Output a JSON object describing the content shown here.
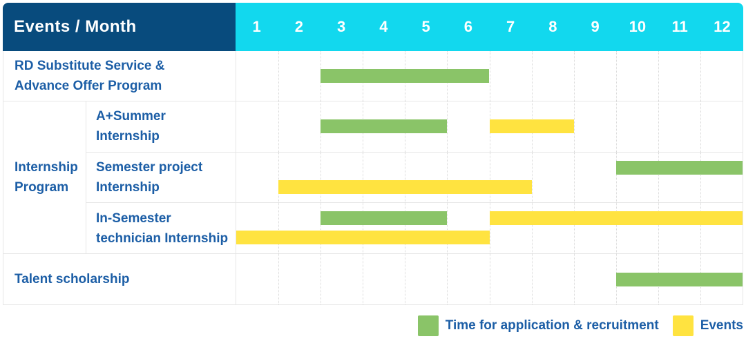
{
  "theme": {
    "header_navy": "#084b7d",
    "header_cyan": "#12d8ee",
    "recruitment_green": "#8ac468",
    "event_yellow": "#ffe340",
    "label_blue": "#1c5ea6",
    "grid_gray": "#e6e6e6"
  },
  "chart_data": {
    "type": "gantt",
    "title": "Events / Month",
    "x": {
      "label": "Month",
      "range": [
        1,
        12
      ],
      "ticks": [
        "1",
        "2",
        "3",
        "4",
        "5",
        "6",
        "7",
        "8",
        "9",
        "10",
        "11",
        "12"
      ]
    },
    "legend": [
      {
        "key": "recruitment",
        "label": "Time for application & recruitment",
        "color": "#8ac468"
      },
      {
        "key": "event",
        "label": "Events",
        "color": "#ffe340"
      }
    ],
    "rows": [
      {
        "label": "RD Substitute Service & Advance Offer Program",
        "label_lines": [
          "RD Substitute Service &",
          "Advance Offer Program"
        ],
        "bars": [
          {
            "series": "recruitment",
            "start_month": 3,
            "end_month": 6,
            "lane": "mid"
          }
        ]
      },
      {
        "group_label": "Internship Program",
        "group_label_lines": [
          "Internship",
          "Program"
        ],
        "children": [
          {
            "label": "A+Summer Internship",
            "label_lines": [
              "A+Summer",
              "Internship"
            ],
            "bars": [
              {
                "series": "recruitment",
                "start_month": 3,
                "end_month": 5,
                "lane": "mid"
              },
              {
                "series": "event",
                "start_month": 7,
                "end_month": 8,
                "lane": "mid"
              }
            ]
          },
          {
            "label": "Semester project Internship",
            "label_lines": [
              "Semester project",
              "Internship"
            ],
            "bars": [
              {
                "series": "recruitment",
                "start_month": 10,
                "end_month": 12,
                "lane": "top"
              },
              {
                "series": "event",
                "start_month": 2,
                "end_month": 7,
                "lane": "bottom"
              }
            ]
          },
          {
            "label": "In-Semester technician Internship",
            "label_lines": [
              "In-Semester",
              "technician Internship"
            ],
            "bars": [
              {
                "series": "recruitment",
                "start_month": 3,
                "end_month": 5,
                "lane": "top"
              },
              {
                "series": "event",
                "start_month": 7,
                "end_month": 12,
                "lane": "top"
              },
              {
                "series": "event",
                "start_month": 1,
                "end_month": 6,
                "lane": "bottom"
              }
            ]
          }
        ]
      },
      {
        "label": "Talent scholarship",
        "label_lines": [
          "Talent scholarship"
        ],
        "bars": [
          {
            "series": "recruitment",
            "start_month": 10,
            "end_month": 12,
            "lane": "mid"
          }
        ]
      }
    ]
  }
}
